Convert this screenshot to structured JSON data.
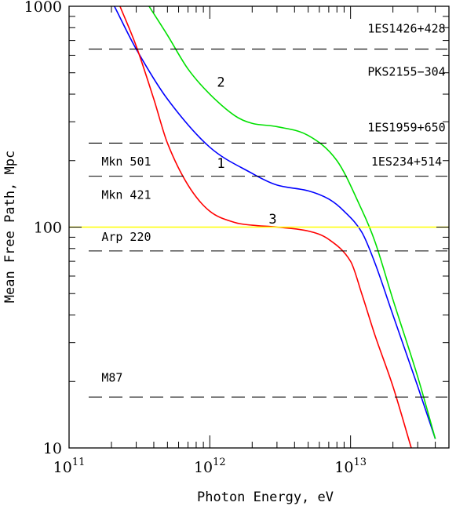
{
  "chart_data": {
    "type": "line",
    "xlabel": "Photon Energy, eV",
    "ylabel": "Mean Free Path, Mpc",
    "x_scale": "log",
    "y_scale": "log",
    "xlim": [
      100000000000.0,
      50000000000000.0
    ],
    "ylim": [
      10,
      1000
    ],
    "x_ticks": [
      {
        "value": 100000000000.0,
        "base": "10",
        "exp": "11"
      },
      {
        "value": 1000000000000.0,
        "base": "10",
        "exp": "12"
      },
      {
        "value": 10000000000000.0,
        "base": "10",
        "exp": "13"
      }
    ],
    "y_ticks": [
      {
        "value": 10,
        "label": "10"
      },
      {
        "value": 100,
        "label": "100"
      },
      {
        "value": 1000,
        "label": "1000"
      }
    ],
    "grid": false,
    "legend": "none",
    "series": [
      {
        "label": "1",
        "color": "#0000ff",
        "points": [
          [
            210000000000.0,
            1000
          ],
          [
            300000000000.0,
            640
          ],
          [
            500000000000.0,
            380
          ],
          [
            1000000000000.0,
            230
          ],
          [
            2000000000000.0,
            175
          ],
          [
            3000000000000.0,
            155
          ],
          [
            5000000000000.0,
            146
          ],
          [
            7000000000000.0,
            134
          ],
          [
            9000000000000.0,
            118
          ],
          [
            12000000000000.0,
            95
          ],
          [
            15000000000000.0,
            68
          ],
          [
            20000000000000.0,
            40
          ],
          [
            30000000000000.0,
            19
          ],
          [
            40000000000000.0,
            11
          ]
        ]
      },
      {
        "label": "2",
        "color": "#00e000",
        "points": [
          [
            370000000000.0,
            1000
          ],
          [
            500000000000.0,
            740
          ],
          [
            700000000000.0,
            520
          ],
          [
            1000000000000.0,
            400
          ],
          [
            1500000000000.0,
            320
          ],
          [
            2000000000000.0,
            295
          ],
          [
            3000000000000.0,
            285
          ],
          [
            5000000000000.0,
            260
          ],
          [
            8000000000000.0,
            200
          ],
          [
            12000000000000.0,
            120
          ],
          [
            15000000000000.0,
            85
          ],
          [
            20000000000000.0,
            47
          ],
          [
            30000000000000.0,
            21
          ],
          [
            40000000000000.0,
            11
          ]
        ]
      },
      {
        "label": "3",
        "color": "#ff0000",
        "points": [
          [
            230000000000.0,
            1000
          ],
          [
            300000000000.0,
            660
          ],
          [
            400000000000.0,
            380
          ],
          [
            500000000000.0,
            240
          ],
          [
            700000000000.0,
            155
          ],
          [
            1000000000000.0,
            118
          ],
          [
            1500000000000.0,
            105
          ],
          [
            2000000000000.0,
            102
          ],
          [
            3000000000000.0,
            100
          ],
          [
            5000000000000.0,
            96
          ],
          [
            7000000000000.0,
            88
          ],
          [
            10000000000000.0,
            70
          ],
          [
            12000000000000.0,
            50
          ],
          [
            15000000000000.0,
            32
          ],
          [
            20000000000000.0,
            19
          ],
          [
            27000000000000.0,
            10
          ]
        ]
      },
      {
        "label": "",
        "color": "#ffff00",
        "points": [
          [
            100000000000.0,
            100
          ],
          [
            50000000000000.0,
            100
          ]
        ]
      }
    ],
    "reference_lines": [
      {
        "y": 640,
        "labels": [
          "1ES1426+428",
          "PKS2155-304"
        ]
      },
      {
        "y": 240,
        "labels": [
          "1ES1959+650"
        ]
      },
      {
        "y": 170,
        "labels": [
          "Mkn 501",
          "Mkn 421",
          "1ES234+514"
        ]
      },
      {
        "y": 78,
        "labels": [
          "Arp 220"
        ]
      },
      {
        "y": 17,
        "labels": [
          "M87"
        ]
      }
    ],
    "annotations": [
      {
        "text": "1ES1426+428",
        "x": 25000000000000.0,
        "y": 800
      },
      {
        "text": "PKS2155−304",
        "x": 25000000000000.0,
        "y": 510
      },
      {
        "text": "1ES1959+650",
        "x": 25000000000000.0,
        "y": 285
      },
      {
        "text": "1ES234+514",
        "x": 25000000000000.0,
        "y": 200
      },
      {
        "text": "Mkn 501",
        "x": 170000000000.0,
        "y": 200
      },
      {
        "text": "Mkn 421",
        "x": 170000000000.0,
        "y": 141
      },
      {
        "text": "Arp 220",
        "x": 170000000000.0,
        "y": 91
      },
      {
        "text": "M87",
        "x": 170000000000.0,
        "y": 21
      },
      {
        "text": "2",
        "x": 1200000000000.0,
        "y": 455
      },
      {
        "text": "1",
        "x": 1200000000000.0,
        "y": 195
      },
      {
        "text": "3",
        "x": 2800000000000.0,
        "y": 109
      }
    ]
  }
}
